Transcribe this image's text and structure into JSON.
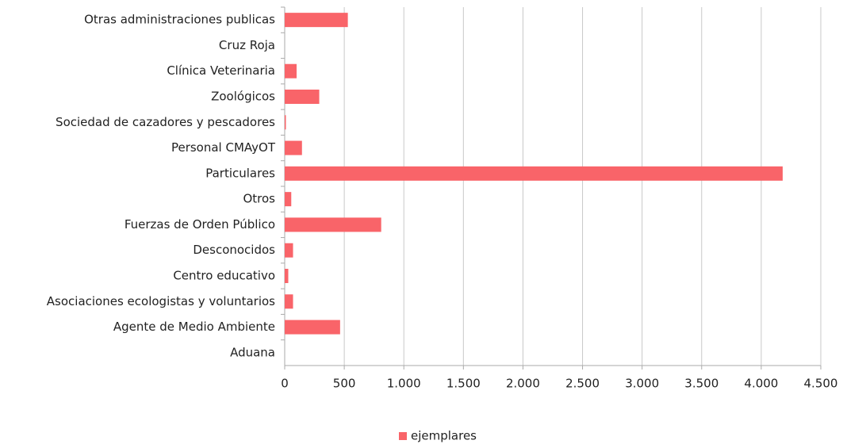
{
  "chart_data": {
    "type": "hbar",
    "categories": [
      "Otras administraciones publicas",
      "Cruz Roja",
      "Clínica Veterinaria",
      "Zoológicos",
      "Sociedad de cazadores y pescadores",
      "Personal CMAyOT",
      "Particulares",
      "Otros",
      "Fuerzas de Orden Público",
      "Desconocidos",
      "Centro educativo",
      "Asociaciones ecologistas y voluntarios",
      "Agente de Medio Ambiente",
      "Aduana"
    ],
    "series": [
      {
        "name": "ejemplares",
        "color": "#f96469",
        "values": [
          530,
          0,
          100,
          290,
          10,
          145,
          4180,
          55,
          810,
          70,
          30,
          70,
          465,
          0
        ]
      }
    ],
    "xlim": [
      0,
      4500
    ],
    "xticks": [
      0,
      500,
      {
        "value": 1000,
        "label": "1.000"
      },
      {
        "value": 1500,
        "label": "1.500"
      },
      {
        "value": 2000,
        "label": "2.000"
      },
      {
        "value": 2500,
        "label": "2.500"
      },
      {
        "value": 3000,
        "label": "3.000"
      },
      {
        "value": 3500,
        "label": "3.500"
      },
      {
        "value": 4000,
        "label": "4.000"
      },
      {
        "value": 4500,
        "label": "4.500"
      }
    ],
    "grid": true,
    "legend": "bottom"
  }
}
